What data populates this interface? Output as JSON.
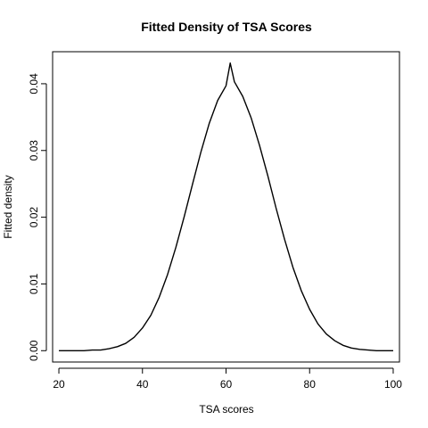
{
  "chart_data": {
    "type": "line",
    "title": "Fitted Density of TSA Scores",
    "xlabel": "TSA scores",
    "ylabel": "Fitted density",
    "xlim": [
      18.5,
      101.5
    ],
    "ylim": [
      -0.0017,
      0.0448
    ],
    "xticks": [
      20,
      40,
      60,
      80,
      100
    ],
    "yticks": [
      0.0,
      0.01,
      0.02,
      0.03,
      0.04
    ],
    "xtick_labels": [
      "20",
      "40",
      "60",
      "80",
      "100"
    ],
    "ytick_labels": [
      "0.00",
      "0.01",
      "0.02",
      "0.03",
      "0.04"
    ],
    "grid": false,
    "legend": "none",
    "series": [
      {
        "x": [
          20,
          22,
          24,
          26,
          28,
          30,
          32,
          34,
          36,
          38,
          40,
          42,
          44,
          46,
          48,
          50,
          52,
          54,
          56,
          58,
          60,
          61,
          62,
          64,
          66,
          68,
          70,
          72,
          74,
          76,
          78,
          80,
          82,
          84,
          86,
          88,
          90,
          92,
          94,
          96,
          98,
          100
        ],
        "y": [
          0.0,
          0.0,
          0.0,
          0.0,
          0.0001,
          0.0001,
          0.0003,
          0.0006,
          0.0011,
          0.002,
          0.0034,
          0.0053,
          0.008,
          0.0114,
          0.0155,
          0.0201,
          0.025,
          0.0298,
          0.0341,
          0.0375,
          0.0397,
          0.0431,
          0.0403,
          0.0381,
          0.0349,
          0.0308,
          0.0262,
          0.0213,
          0.0167,
          0.0125,
          0.009,
          0.0062,
          0.004,
          0.0025,
          0.0015,
          0.0008,
          0.0004,
          0.0002,
          0.0001,
          0.0,
          0.0,
          0.0
        ],
        "color": "#000000"
      }
    ]
  }
}
